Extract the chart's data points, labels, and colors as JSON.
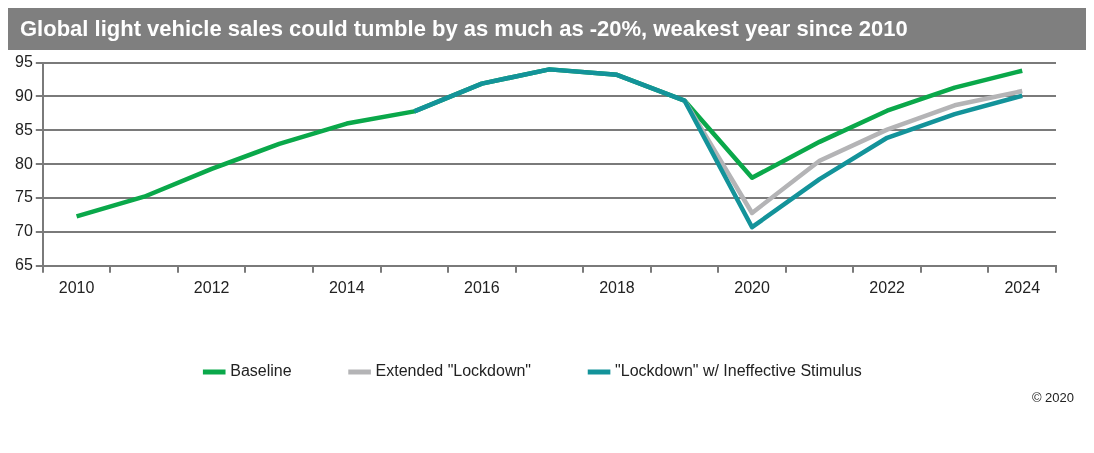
{
  "chart_data": {
    "type": "line",
    "title": "Global light vehicle sales could tumble by as much as -20%, weakest year since 2010",
    "categories": [
      "2010",
      null,
      "2012",
      null,
      "2014",
      null,
      "2016",
      null,
      "2018",
      null,
      "2020",
      null,
      "2022",
      null,
      "2024"
    ],
    "series": [
      {
        "name": "Baseline",
        "color": "#0aa84a",
        "values": [
          72.3,
          75.2,
          79.3,
          83.0,
          86.0,
          87.8,
          91.9,
          94.0,
          93.2,
          89.4,
          78.0,
          83.3,
          87.9,
          91.3,
          93.8
        ]
      },
      {
        "name": "Extended \"Lockdown\"",
        "color": "#b4b4b6",
        "values": [
          null,
          null,
          null,
          null,
          null,
          null,
          null,
          null,
          null,
          89.4,
          72.8,
          80.5,
          85.1,
          88.7,
          90.8
        ]
      },
      {
        "name": "\"Lockdown\" w/ Ineffective Stimulus",
        "color": "#13939a",
        "values": [
          null,
          null,
          null,
          null,
          null,
          87.8,
          91.9,
          94.0,
          93.2,
          89.4,
          70.7,
          77.8,
          83.9,
          87.4,
          90.1
        ]
      }
    ],
    "ylim": [
      65,
      95
    ],
    "yticks": [
      65,
      70,
      75,
      80,
      85,
      90,
      95
    ],
    "grid": "y",
    "legend": "bottom",
    "line_style": "solid",
    "marker": "none",
    "annotations": [
      "© 2020"
    ]
  }
}
